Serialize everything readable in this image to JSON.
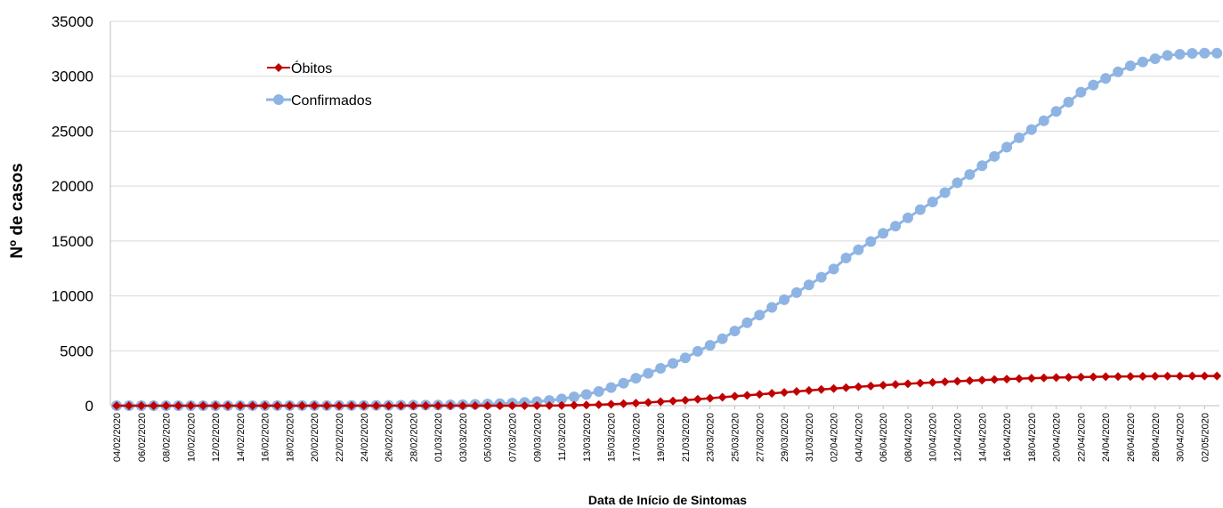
{
  "chart_data": {
    "type": "line",
    "xlabel": "Data de Início de Sintomas",
    "ylabel": "Nº de casos",
    "ylim": [
      0,
      35000
    ],
    "yticks": [
      "0",
      "5000",
      "10000",
      "15000",
      "20000",
      "25000",
      "30000",
      "35000"
    ],
    "x_start": "04/02/2020",
    "x_end": "03/05/2020",
    "grid": true,
    "legend": "top-left",
    "colors": {
      "obitos": "#C00000",
      "confirmados": "#8EB4E3"
    },
    "series": [
      {
        "name": "Óbitos",
        "marker": "diamond",
        "values": [
          0,
          0,
          0,
          0,
          0,
          0,
          0,
          0,
          0,
          0,
          0,
          0,
          0,
          0,
          0,
          0,
          0,
          0,
          0,
          0,
          0,
          0,
          0,
          0,
          0,
          0,
          0,
          0,
          0,
          0,
          0,
          0,
          1,
          2,
          5,
          10,
          20,
          40,
          60,
          90,
          130,
          180,
          230,
          290,
          360,
          430,
          500,
          590,
          680,
          770,
          860,
          940,
          1030,
          1120,
          1210,
          1300,
          1390,
          1480,
          1560,
          1640,
          1720,
          1790,
          1860,
          1930,
          2000,
          2060,
          2120,
          2180,
          2230,
          2280,
          2330,
          2380,
          2420,
          2460,
          2500,
          2530,
          2560,
          2580,
          2600,
          2620,
          2640,
          2650,
          2660,
          2670,
          2680,
          2690,
          2690,
          2700,
          2700,
          2700
        ]
      },
      {
        "name": "Confirmados",
        "marker": "circle",
        "values": [
          1,
          1,
          1,
          1,
          1,
          2,
          2,
          2,
          3,
          3,
          4,
          5,
          6,
          7,
          8,
          10,
          12,
          14,
          17,
          20,
          24,
          28,
          33,
          39,
          46,
          55,
          65,
          78,
          95,
          118,
          148,
          185,
          230,
          290,
          370,
          480,
          620,
          800,
          1020,
          1300,
          1650,
          2050,
          2500,
          2950,
          3400,
          3850,
          4350,
          4950,
          5500,
          6100,
          6800,
          7550,
          8250,
          8950,
          9650,
          10300,
          11000,
          11700,
          12450,
          13450,
          14200,
          14950,
          15700,
          16350,
          17100,
          17850,
          18550,
          19400,
          20300,
          21050,
          21850,
          22700,
          23550,
          24400,
          25150,
          25950,
          26800,
          27650,
          28550,
          29200,
          29800,
          30400,
          30950,
          31300,
          31600,
          31900,
          32000,
          32080,
          32100,
          32100
        ]
      }
    ]
  }
}
